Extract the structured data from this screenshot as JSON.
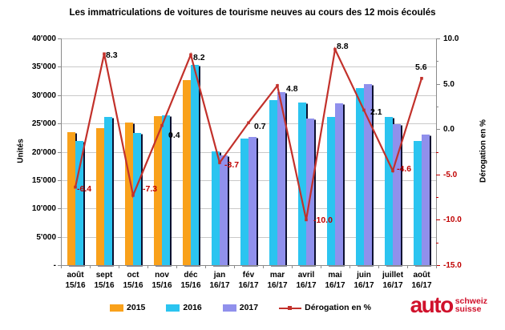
{
  "chart_data": {
    "type": "bar+line",
    "title": "Les immatriculations de voitures de tourisme neuves au cours des 12 mois écoulés",
    "ylabel_left": "Unités",
    "ylabel_right": "Dérogation en %",
    "categories": [
      {
        "month": "août",
        "period": "15/16"
      },
      {
        "month": "sept",
        "period": "15/16"
      },
      {
        "month": "oct",
        "period": "15/16"
      },
      {
        "month": "nov",
        "period": "15/16"
      },
      {
        "month": "déc",
        "period": "15/16"
      },
      {
        "month": "jan",
        "period": "16/17"
      },
      {
        "month": "fév",
        "period": "16/17"
      },
      {
        "month": "mar",
        "period": "16/17"
      },
      {
        "month": "avril",
        "period": "16/17"
      },
      {
        "month": "mai",
        "period": "16/17"
      },
      {
        "month": "juin",
        "period": "16/17"
      },
      {
        "month": "juillet",
        "period": "16/17"
      },
      {
        "month": "août",
        "period": "16/17"
      }
    ],
    "y_left": {
      "min": 0,
      "max": 40000,
      "tick_labels": [
        "40'000",
        "35'000",
        "30'000",
        "25'000",
        "20'000",
        "15'000",
        "10'000",
        "5'000",
        "-"
      ],
      "tick_values": [
        40000,
        35000,
        30000,
        25000,
        20000,
        15000,
        10000,
        5000,
        0
      ]
    },
    "y_right": {
      "min": -15,
      "max": 10,
      "tick_labels": [
        "10.0",
        "5.0",
        "0.0",
        "-5.0",
        "-10.0",
        "-15.0"
      ],
      "tick_values": [
        10,
        5,
        0,
        -5,
        -10,
        -15
      ],
      "minor_tick_values": [
        7.5,
        2.5,
        -2.5,
        -7.5,
        -12.5
      ],
      "negative_color": "#C00000"
    },
    "bar_series": [
      {
        "name": "2015",
        "color": "#F9A11B",
        "values": [
          23400,
          24100,
          25100,
          26300,
          32700,
          null,
          null,
          null,
          null,
          null,
          null,
          null,
          null
        ]
      },
      {
        "name": "2016",
        "color": "#2BC4F0",
        "values": [
          21900,
          26100,
          23300,
          26400,
          35400,
          20100,
          22400,
          29100,
          28700,
          26200,
          31200,
          26100,
          21900
        ]
      },
      {
        "name": "2017",
        "color": "#9090EC",
        "values": [
          null,
          null,
          null,
          null,
          null,
          19400,
          22600,
          30500,
          25800,
          28500,
          31900,
          24900,
          23100
        ]
      }
    ],
    "line_series": {
      "name": "Dérogation en %",
      "color": "#C2312B",
      "values": [
        -6.4,
        8.3,
        -7.3,
        0.4,
        8.2,
        -3.7,
        0.7,
        4.8,
        -10.0,
        8.8,
        2.1,
        -4.6,
        5.6
      ],
      "labels": [
        "-6.4",
        "8.3",
        "-7.3",
        "0.4",
        "8.2",
        "-3.7",
        "0.7",
        "4.8",
        "-10.0",
        "8.8",
        "2.1",
        "-4.6",
        "5.6"
      ],
      "positive_label_color": "#000000",
      "negative_label_color": "#C00000"
    }
  },
  "logo": {
    "word": "auto",
    "sub1": "schweiz",
    "sub2": "suisse",
    "color": "#D0112B"
  }
}
